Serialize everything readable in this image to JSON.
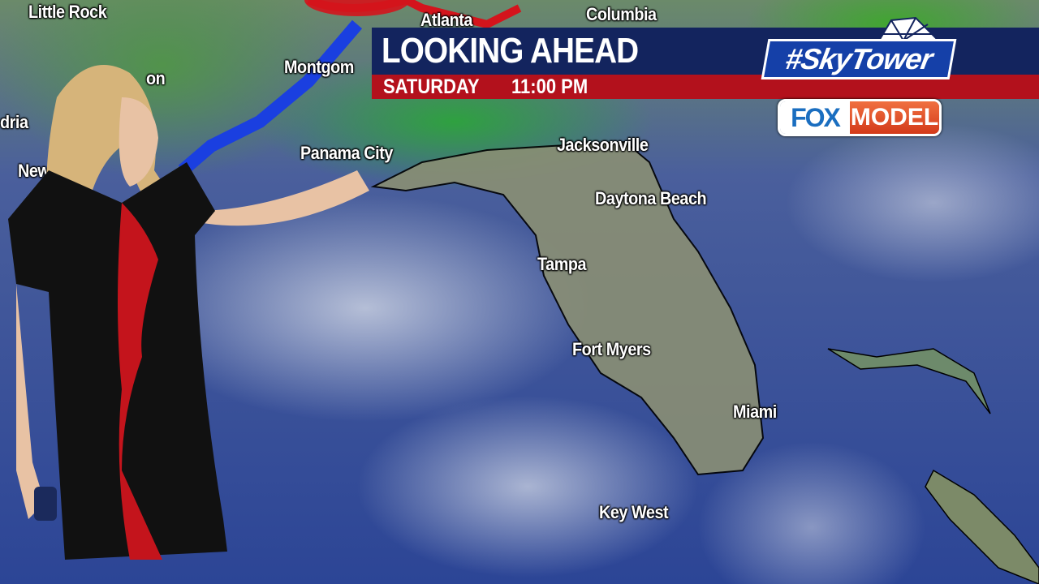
{
  "header": {
    "title": "LOOKING AHEAD",
    "day": "SATURDAY",
    "time": "11:00 PM"
  },
  "branding": {
    "skytower": "#SkyTower",
    "fox": "FOX",
    "model": "MODEL"
  },
  "map": {
    "cities": [
      "Little Rock",
      "Atlanta",
      "Columbia",
      "Montgom",
      "on",
      "dria",
      "New",
      "Panama City",
      "Jacksonville",
      "Daytona Beach",
      "Tampa",
      "Fort Myers",
      "Miami",
      "Key West"
    ],
    "front_color": "#1a3fe0",
    "warm_color": "#d4141c"
  },
  "colors": {
    "banner_navy": "#13245e",
    "banner_red": "#b3111c",
    "fox_blue": "#1a6ec0",
    "model_orange": "#e0502a"
  }
}
